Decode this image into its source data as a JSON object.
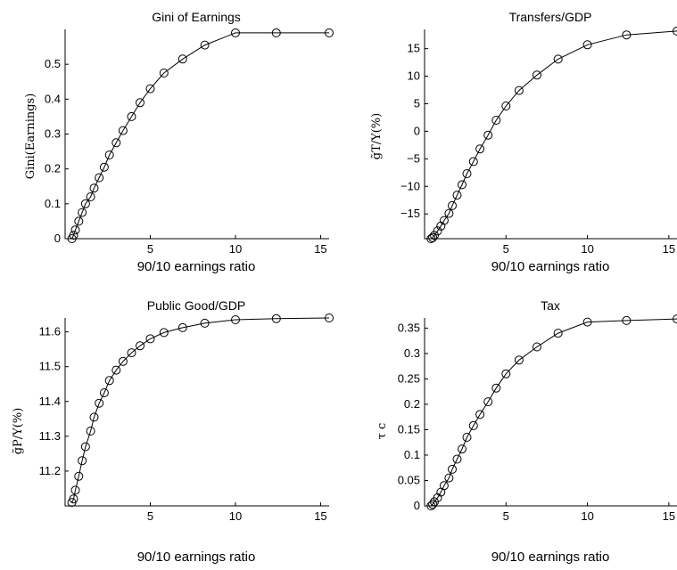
{
  "chart_data": [
    {
      "type": "line",
      "title": "Gini of Earnings",
      "xlabel": "90/10 earnings ratio",
      "ylabel": "Gini(Earnings)",
      "xlim": [
        0,
        15.5
      ],
      "ylim": [
        0,
        0.6
      ],
      "xticks": [
        "5",
        "10",
        "15"
      ],
      "yticks": [
        "0",
        "0.1",
        "0.2",
        "0.3",
        "0.4",
        "0.5"
      ],
      "x": [
        0.4,
        0.5,
        0.6,
        0.8,
        1.0,
        1.2,
        1.5,
        1.7,
        2.0,
        2.3,
        2.6,
        3.0,
        3.4,
        3.9,
        4.4,
        5.0,
        5.8,
        6.9,
        8.2,
        10.0,
        12.4,
        15.5
      ],
      "y": [
        0.0,
        0.01,
        0.025,
        0.05,
        0.075,
        0.1,
        0.12,
        0.145,
        0.175,
        0.205,
        0.24,
        0.275,
        0.31,
        0.35,
        0.39,
        0.43,
        0.475,
        0.515,
        0.555,
        0.59,
        0.59,
        0.59
      ]
    },
    {
      "type": "line",
      "title": "Transfers/GDP",
      "xlabel": "90/10 earnings ratio",
      "ylabel": "g̃T/Y(%)",
      "xlim": [
        0,
        15.5
      ],
      "ylim": [
        -19.5,
        18.5
      ],
      "xticks": [
        "5",
        "10",
        "15"
      ],
      "yticks": [
        "15",
        "10",
        "5",
        "0",
        "−5",
        "−10",
        "−15"
      ],
      "x": [
        0.4,
        0.5,
        0.6,
        0.8,
        1.0,
        1.2,
        1.5,
        1.7,
        2.0,
        2.3,
        2.6,
        3.0,
        3.4,
        3.9,
        4.4,
        5.0,
        5.8,
        6.9,
        8.2,
        10.0,
        12.4,
        15.5
      ],
      "y": [
        -19.5,
        -19.3,
        -18.9,
        -18.1,
        -17.2,
        -16.2,
        -14.9,
        -13.5,
        -11.6,
        -9.7,
        -7.7,
        -5.5,
        -3.2,
        -0.7,
        2.0,
        4.6,
        7.4,
        10.2,
        13.1,
        15.7,
        17.5,
        18.2
      ]
    },
    {
      "type": "line",
      "title": "Public Good/GDP",
      "xlabel": "90/10 earnings ratio",
      "ylabel": "g̃P/Y(%)",
      "xlim": [
        0,
        15.5
      ],
      "ylim": [
        11.1,
        11.64
      ],
      "xticks": [
        "5",
        "10",
        "15"
      ],
      "yticks": [
        "11.6",
        "11.5",
        "11.4",
        "11.3",
        "11.2"
      ],
      "x": [
        0.4,
        0.5,
        0.6,
        0.8,
        1.0,
        1.2,
        1.5,
        1.7,
        2.0,
        2.3,
        2.6,
        3.0,
        3.4,
        3.9,
        4.4,
        5.0,
        5.8,
        6.9,
        8.2,
        10.0,
        12.4,
        15.5
      ],
      "y": [
        11.11,
        11.12,
        11.145,
        11.185,
        11.23,
        11.27,
        11.315,
        11.355,
        11.395,
        11.425,
        11.46,
        11.49,
        11.515,
        11.54,
        11.56,
        11.58,
        11.598,
        11.612,
        11.625,
        11.635,
        11.638,
        11.64
      ]
    },
    {
      "type": "line",
      "title": "Tax",
      "xlabel": "90/10 earnings ratio",
      "ylabel": "τ c",
      "xlim": [
        0,
        15.5
      ],
      "ylim": [
        0,
        0.37
      ],
      "xticks": [
        "5",
        "10",
        "15"
      ],
      "yticks": [
        "0",
        "0.05",
        "0.1",
        "0.15",
        "0.2",
        "0.25",
        "0.3",
        "0.35"
      ],
      "x": [
        0.4,
        0.5,
        0.6,
        0.8,
        1.0,
        1.2,
        1.5,
        1.7,
        2.0,
        2.3,
        2.6,
        3.0,
        3.4,
        3.9,
        4.4,
        5.0,
        5.8,
        6.9,
        8.2,
        10.0,
        12.4,
        15.5
      ],
      "y": [
        0.0,
        0.003,
        0.008,
        0.016,
        0.027,
        0.04,
        0.055,
        0.072,
        0.092,
        0.112,
        0.135,
        0.158,
        0.18,
        0.205,
        0.232,
        0.26,
        0.287,
        0.313,
        0.34,
        0.362,
        0.365,
        0.368
      ]
    }
  ]
}
